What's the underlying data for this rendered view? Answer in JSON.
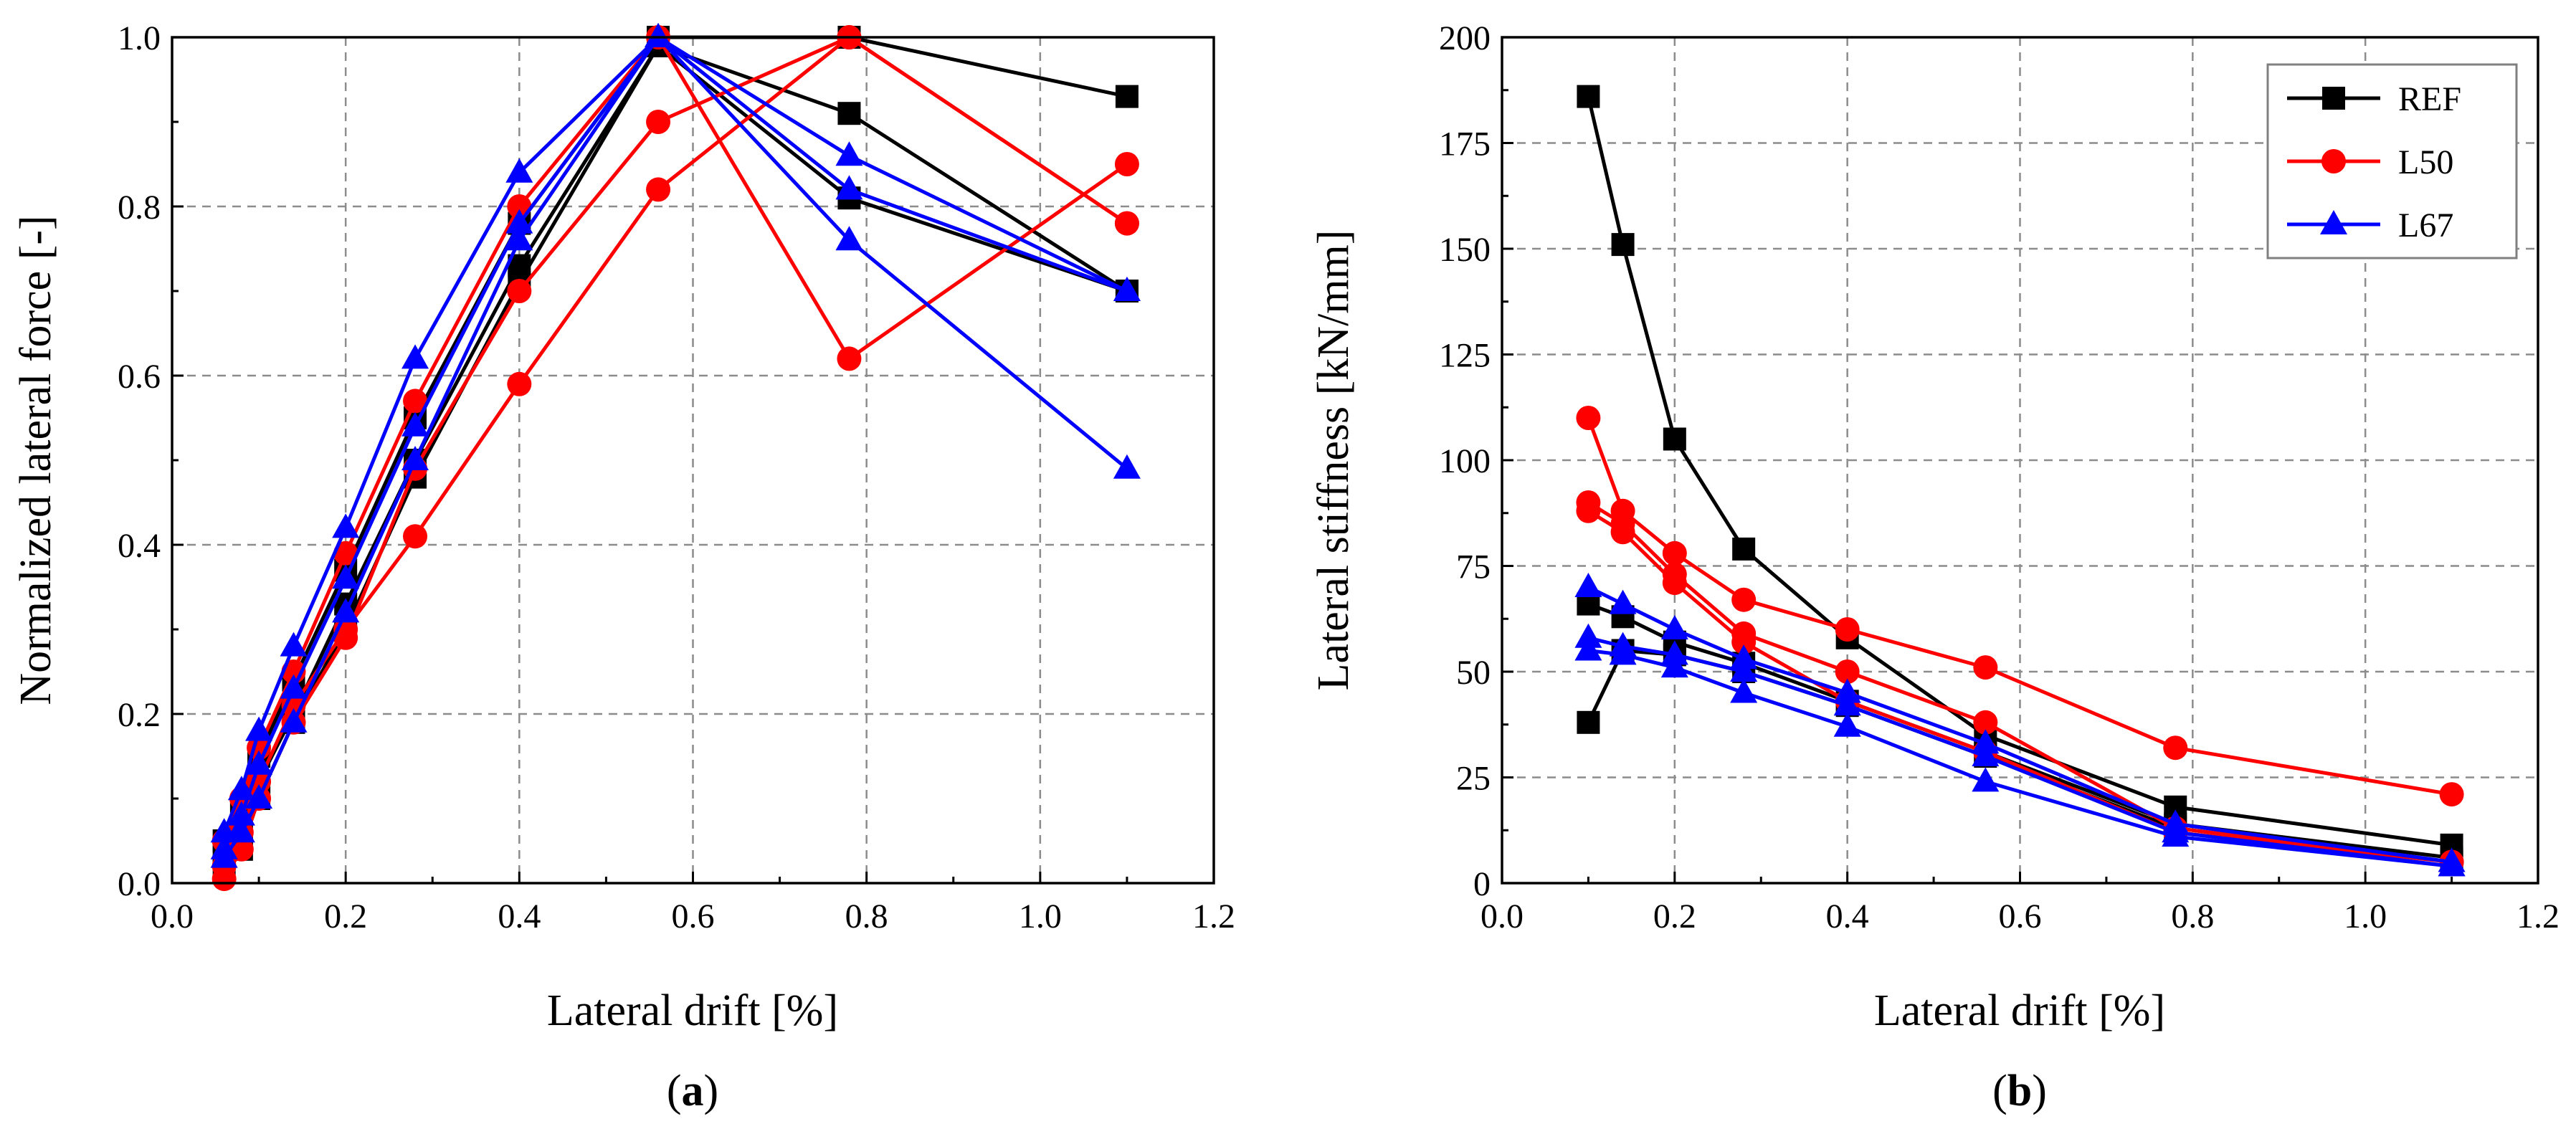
{
  "colors": {
    "REF": "#000000",
    "L50": "#ff0000",
    "L67": "#0000ff"
  },
  "legend": [
    {
      "name": "REF",
      "marker": "square"
    },
    {
      "name": "L50",
      "marker": "circle"
    },
    {
      "name": "L67",
      "marker": "triangle"
    }
  ],
  "panels": {
    "a_label": "a",
    "b_label": "b"
  },
  "chart_data": [
    {
      "type": "line",
      "panel": "a",
      "title": "",
      "xlabel": "Lateral drift [%]",
      "ylabel": "Normalized lateral force [-]",
      "xlim": [
        0.0,
        1.2
      ],
      "ylim": [
        0.0,
        1.0
      ],
      "xticks": [
        0.0,
        0.2,
        0.4,
        0.6,
        0.8,
        1.0,
        1.2
      ],
      "yticks": [
        0.0,
        0.2,
        0.4,
        0.6,
        0.8,
        1.0
      ],
      "xtick_labels": [
        "0.0",
        "0.2",
        "0.4",
        "0.6",
        "0.8",
        "1.0",
        "1.2"
      ],
      "ytick_labels": [
        "0.0",
        "0.2",
        "0.4",
        "0.6",
        "0.8",
        "1.0"
      ],
      "grid": true,
      "series": [
        {
          "name": "REF",
          "marker": "square",
          "x": [
            0.06,
            0.08,
            0.1,
            0.14,
            0.2,
            0.28,
            0.4,
            0.56,
            0.78,
            1.1
          ],
          "y": [
            0.05,
            0.09,
            0.15,
            0.24,
            0.37,
            0.55,
            0.78,
            1.0,
            1.0,
            0.93
          ]
        },
        {
          "name": "REF",
          "marker": "square",
          "x": [
            0.06,
            0.08,
            0.1,
            0.14,
            0.2,
            0.28,
            0.4,
            0.56,
            0.78,
            1.1
          ],
          "y": [
            0.03,
            0.06,
            0.12,
            0.2,
            0.33,
            0.5,
            0.73,
            0.99,
            0.91,
            0.7
          ]
        },
        {
          "name": "REF",
          "marker": "square",
          "x": [
            0.06,
            0.08,
            0.1,
            0.14,
            0.2,
            0.28,
            0.4,
            0.56,
            0.78,
            1.1
          ],
          "y": [
            0.02,
            0.04,
            0.1,
            0.19,
            0.3,
            0.48,
            0.71,
            0.99,
            0.81,
            0.7
          ]
        },
        {
          "name": "L50",
          "marker": "circle",
          "x": [
            0.06,
            0.08,
            0.1,
            0.14,
            0.2,
            0.28,
            0.4,
            0.56,
            0.78,
            1.1
          ],
          "y": [
            0.05,
            0.1,
            0.16,
            0.25,
            0.39,
            0.57,
            0.8,
            1.0,
            0.62,
            0.85
          ]
        },
        {
          "name": "L50",
          "marker": "circle",
          "x": [
            0.06,
            0.08,
            0.1,
            0.14,
            0.2,
            0.28,
            0.4,
            0.56,
            0.78,
            1.1
          ],
          "y": [
            0.02,
            0.06,
            0.12,
            0.21,
            0.3,
            0.41,
            0.59,
            0.82,
            1.0,
            0.78
          ]
        },
        {
          "name": "L50",
          "marker": "circle",
          "x": [
            0.06,
            0.08,
            0.1,
            0.14,
            0.2,
            0.28,
            0.4,
            0.56,
            0.78,
            1.1
          ],
          "y": [
            0.005,
            0.04,
            0.1,
            0.19,
            0.29,
            0.49,
            0.7,
            0.9,
            1.0,
            0.78
          ]
        },
        {
          "name": "L67",
          "marker": "triangle",
          "x": [
            0.06,
            0.08,
            0.1,
            0.14,
            0.2,
            0.28,
            0.4,
            0.56,
            0.78,
            1.1
          ],
          "y": [
            0.06,
            0.11,
            0.18,
            0.28,
            0.42,
            0.62,
            0.84,
            1.0,
            0.76,
            0.49
          ]
        },
        {
          "name": "L67",
          "marker": "triangle",
          "x": [
            0.06,
            0.08,
            0.1,
            0.14,
            0.2,
            0.28,
            0.4,
            0.56,
            0.78,
            1.1
          ],
          "y": [
            0.04,
            0.08,
            0.14,
            0.23,
            0.36,
            0.54,
            0.78,
            1.0,
            0.86,
            0.7
          ]
        },
        {
          "name": "L67",
          "marker": "triangle",
          "x": [
            0.06,
            0.08,
            0.1,
            0.14,
            0.2,
            0.28,
            0.4,
            0.56,
            0.78,
            1.1
          ],
          "y": [
            0.03,
            0.06,
            0.1,
            0.19,
            0.32,
            0.5,
            0.76,
            1.0,
            0.82,
            0.7
          ]
        }
      ]
    },
    {
      "type": "line",
      "panel": "b",
      "title": "",
      "xlabel": "Lateral drift [%]",
      "ylabel": "Lateral stiffness [kN/mm]",
      "xlim": [
        0.0,
        1.2
      ],
      "ylim": [
        0,
        200
      ],
      "xticks": [
        0.0,
        0.2,
        0.4,
        0.6,
        0.8,
        1.0,
        1.2
      ],
      "yticks": [
        0,
        25,
        50,
        75,
        100,
        125,
        150,
        175,
        200
      ],
      "xtick_labels": [
        "0.0",
        "0.2",
        "0.4",
        "0.6",
        "0.8",
        "1.0",
        "1.2"
      ],
      "ytick_labels": [
        "0",
        "25",
        "50",
        "75",
        "100",
        "125",
        "150",
        "175",
        "200"
      ],
      "grid": true,
      "legend_position": "top-right",
      "series": [
        {
          "name": "REF",
          "marker": "square",
          "x": [
            0.1,
            0.14,
            0.2,
            0.28,
            0.4,
            0.56,
            0.78,
            1.1
          ],
          "y": [
            186,
            151,
            105,
            79,
            58,
            35,
            18,
            9
          ]
        },
        {
          "name": "REF",
          "marker": "square",
          "x": [
            0.1,
            0.14,
            0.2,
            0.28,
            0.4,
            0.56,
            0.78,
            1.1
          ],
          "y": [
            66,
            63,
            57,
            52,
            43,
            31,
            14,
            6
          ]
        },
        {
          "name": "REF",
          "marker": "square",
          "x": [
            0.1,
            0.14,
            0.2,
            0.28,
            0.4,
            0.56,
            0.78,
            1.1
          ],
          "y": [
            38,
            55,
            54,
            50,
            42,
            30,
            13,
            5
          ]
        },
        {
          "name": "L50",
          "marker": "circle",
          "x": [
            0.1,
            0.14,
            0.2,
            0.28,
            0.4,
            0.56,
            0.78,
            1.1
          ],
          "y": [
            110,
            88,
            78,
            67,
            60,
            51,
            32,
            21
          ]
        },
        {
          "name": "L50",
          "marker": "circle",
          "x": [
            0.1,
            0.14,
            0.2,
            0.28,
            0.4,
            0.56,
            0.78,
            1.1
          ],
          "y": [
            90,
            85,
            73,
            59,
            50,
            38,
            13,
            5
          ]
        },
        {
          "name": "L50",
          "marker": "circle",
          "x": [
            0.1,
            0.14,
            0.2,
            0.28,
            0.4,
            0.56,
            0.78,
            1.1
          ],
          "y": [
            88,
            83,
            71,
            57,
            43,
            31,
            12,
            5
          ]
        },
        {
          "name": "L67",
          "marker": "triangle",
          "x": [
            0.1,
            0.14,
            0.2,
            0.28,
            0.4,
            0.56,
            0.78,
            1.1
          ],
          "y": [
            70,
            66,
            60,
            53,
            45,
            33,
            14,
            5
          ]
        },
        {
          "name": "L67",
          "marker": "triangle",
          "x": [
            0.1,
            0.14,
            0.2,
            0.28,
            0.4,
            0.56,
            0.78,
            1.1
          ],
          "y": [
            58,
            56,
            54,
            50,
            42,
            30,
            12,
            4
          ]
        },
        {
          "name": "L67",
          "marker": "triangle",
          "x": [
            0.1,
            0.14,
            0.2,
            0.28,
            0.4,
            0.56,
            0.78,
            1.1
          ],
          "y": [
            55,
            54,
            51,
            45,
            37,
            24,
            11,
            4
          ]
        }
      ]
    }
  ]
}
